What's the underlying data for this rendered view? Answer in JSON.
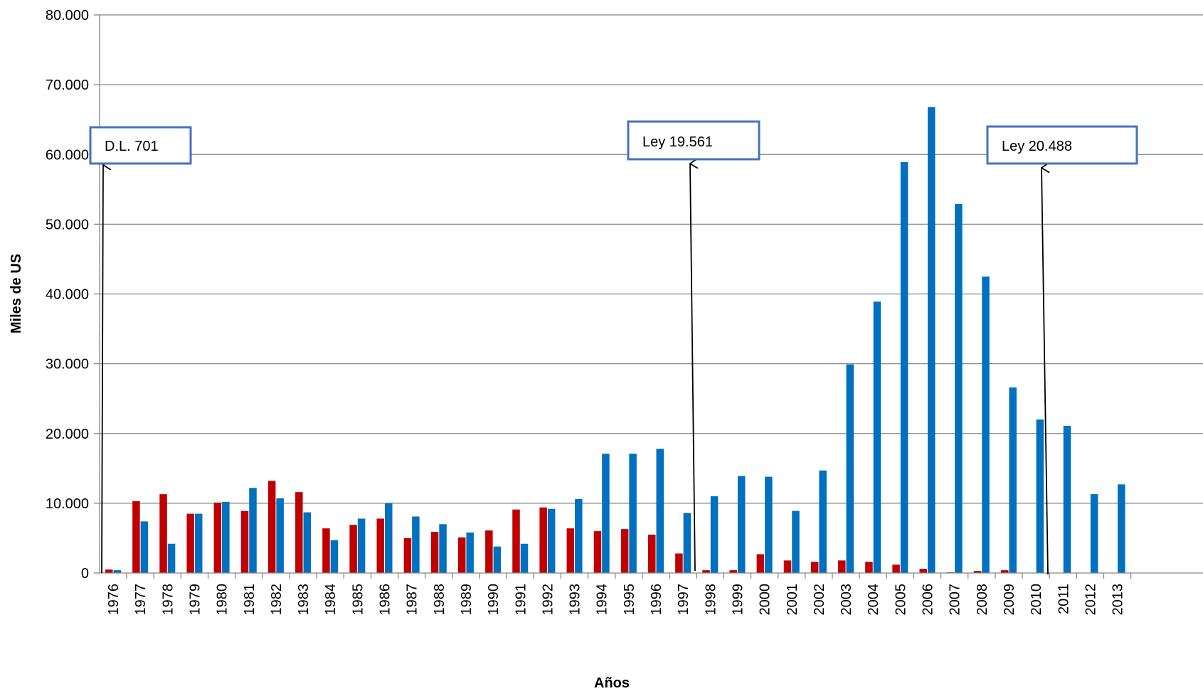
{
  "chart_data": {
    "type": "bar",
    "xlabel": "Años",
    "ylabel": "Miles de US",
    "ylim": [
      0,
      80000
    ],
    "yticks": [
      0,
      10000,
      20000,
      30000,
      40000,
      50000,
      60000,
      70000,
      80000
    ],
    "ytick_labels": [
      "0",
      "10.000",
      "20.000",
      "30.000",
      "40.000",
      "50.000",
      "60.000",
      "70.000",
      "80.000"
    ],
    "grid": true,
    "legend": "none",
    "categories": [
      "1976",
      "1977",
      "1978",
      "1979",
      "1980",
      "1981",
      "1982",
      "1983",
      "1984",
      "1985",
      "1986",
      "1987",
      "1988",
      "1989",
      "1990",
      "1991",
      "1992",
      "1993",
      "1994",
      "1995",
      "1996",
      "1997",
      "1998",
      "1999",
      "2000",
      "2001",
      "2002",
      "2003",
      "2004",
      "2005",
      "2006",
      "2007",
      "2008",
      "2009",
      "2010",
      "2011",
      "2012",
      "2013"
    ],
    "series": [
      {
        "color": "#C00000",
        "values": [
          500,
          10300,
          11300,
          8500,
          10100,
          8900,
          13200,
          11600,
          6400,
          6900,
          7800,
          5000,
          5900,
          5100,
          6100,
          9100,
          9400,
          6400,
          6000,
          6300,
          5500,
          2800,
          400,
          400,
          2700,
          1800,
          1600,
          1800,
          1600,
          1200,
          600,
          100,
          300,
          400,
          0,
          0,
          0,
          0
        ]
      },
      {
        "color": "#0070C0",
        "values": [
          400,
          7400,
          4200,
          8500,
          10200,
          12200,
          10700,
          8700,
          4700,
          7800,
          10000,
          8100,
          7000,
          5800,
          3800,
          4200,
          9200,
          10600,
          17100,
          17100,
          17800,
          8600,
          11000,
          13900,
          13800,
          8900,
          14700,
          29900,
          38900,
          58900,
          66800,
          52900,
          42500,
          26600,
          22000,
          21100,
          11300,
          12700
        ]
      }
    ],
    "annotations": [
      {
        "text": "D.L. 701",
        "year": "1976"
      },
      {
        "text": "Ley 19.561",
        "year": "1998"
      },
      {
        "text": "Ley 20.488",
        "year": "2011"
      }
    ]
  }
}
